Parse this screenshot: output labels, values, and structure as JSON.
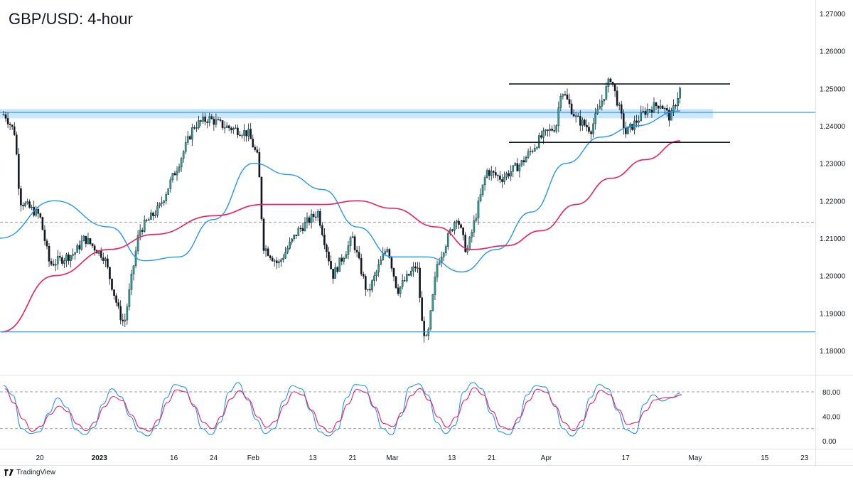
{
  "title": "GBP/USD: 4-hour",
  "brand": "TradingView",
  "colors": {
    "bull": "#26a69a",
    "bear": "#131722",
    "ma_short": "#2196f3",
    "ma_long": "#e91e63",
    "zone": "#90caf9",
    "support_line": "#2196f3",
    "range_lines": "#131722",
    "stoch_k": "#2196f3",
    "stoch_d": "#e91e63"
  },
  "chart_data": [
    {
      "type": "candlestick",
      "title": "GBP/USD: 4-hour",
      "ylim": [
        1.1755,
        1.2715
      ],
      "y_ticks": [
        "1.27000",
        "1.26000",
        "1.25000",
        "1.24000",
        "1.23000",
        "1.22000",
        "1.21000",
        "1.20000",
        "1.19000",
        "1.18000"
      ],
      "x_ticks": [
        "20",
        "2023",
        "16",
        "24",
        "Feb",
        "13",
        "21",
        "Mar",
        "13",
        "21",
        "Apr",
        "17",
        "May",
        "15",
        "23"
      ],
      "price_anchors": [
        {
          "date": "Dec 13",
          "close": 1.243
        },
        {
          "date": "Dec 15",
          "close": 1.238
        },
        {
          "date": "Dec 16",
          "close": 1.22
        },
        {
          "date": "Dec 20",
          "close": 1.216
        },
        {
          "date": "Dec 22",
          "close": 1.203
        },
        {
          "date": "Dec 27",
          "close": 1.206
        },
        {
          "date": "Dec 29",
          "close": 1.21
        },
        {
          "date": "Jan 02",
          "close": 1.205
        },
        {
          "date": "Jan 05",
          "close": 1.19
        },
        {
          "date": "Jan 06",
          "close": 1.187
        },
        {
          "date": "Jan 09",
          "close": 1.212
        },
        {
          "date": "Jan 13",
          "close": 1.218
        },
        {
          "date": "Jan 17",
          "close": 1.23
        },
        {
          "date": "Jan 20",
          "close": 1.24
        },
        {
          "date": "Jan 23",
          "close": 1.242
        },
        {
          "date": "Jan 26",
          "close": 1.24
        },
        {
          "date": "Jan 31",
          "close": 1.238
        },
        {
          "date": "Feb 02",
          "close": 1.231
        },
        {
          "date": "Feb 03",
          "close": 1.208
        },
        {
          "date": "Feb 06",
          "close": 1.203
        },
        {
          "date": "Feb 10",
          "close": 1.212
        },
        {
          "date": "Feb 14",
          "close": 1.217
        },
        {
          "date": "Feb 17",
          "close": 1.2
        },
        {
          "date": "Feb 21",
          "close": 1.21
        },
        {
          "date": "Feb 24",
          "close": 1.195
        },
        {
          "date": "Feb 28",
          "close": 1.208
        },
        {
          "date": "Mar 02",
          "close": 1.196
        },
        {
          "date": "Mar 06",
          "close": 1.203
        },
        {
          "date": "Mar 07",
          "close": 1.187
        },
        {
          "date": "Mar 08",
          "close": 1.182
        },
        {
          "date": "Mar 10",
          "close": 1.203
        },
        {
          "date": "Mar 14",
          "close": 1.216
        },
        {
          "date": "Mar 16",
          "close": 1.206
        },
        {
          "date": "Mar 20",
          "close": 1.228
        },
        {
          "date": "Mar 23",
          "close": 1.226
        },
        {
          "date": "Mar 27",
          "close": 1.23
        },
        {
          "date": "Mar 31",
          "close": 1.237
        },
        {
          "date": "Apr 03",
          "close": 1.24
        },
        {
          "date": "Apr 04",
          "close": 1.25
        },
        {
          "date": "Apr 07",
          "close": 1.242
        },
        {
          "date": "Apr 10",
          "close": 1.239
        },
        {
          "date": "Apr 14",
          "close": 1.253
        },
        {
          "date": "Apr 17",
          "close": 1.238
        },
        {
          "date": "Apr 21",
          "close": 1.244
        },
        {
          "date": "Apr 24",
          "close": 1.246
        },
        {
          "date": "Apr 26",
          "close": 1.242
        },
        {
          "date": "Apr 28",
          "close": 1.25
        }
      ],
      "ma_100": [
        {
          "date": "Dec 13",
          "value": 1.21
        },
        {
          "date": "Dec 23",
          "value": 1.22
        },
        {
          "date": "Jan 03",
          "value": 1.213
        },
        {
          "date": "Jan 10",
          "value": 1.204
        },
        {
          "date": "Jan 17",
          "value": 1.205
        },
        {
          "date": "Jan 24",
          "value": 1.215
        },
        {
          "date": "Feb 01",
          "value": 1.23
        },
        {
          "date": "Feb 08",
          "value": 1.227
        },
        {
          "date": "Feb 15",
          "value": 1.223
        },
        {
          "date": "Feb 22",
          "value": 1.213
        },
        {
          "date": "Mar 01",
          "value": 1.205
        },
        {
          "date": "Mar 08",
          "value": 1.205
        },
        {
          "date": "Mar 15",
          "value": 1.201
        },
        {
          "date": "Mar 22",
          "value": 1.207
        },
        {
          "date": "Mar 29",
          "value": 1.217
        },
        {
          "date": "Apr 05",
          "value": 1.23
        },
        {
          "date": "Apr 12",
          "value": 1.237
        },
        {
          "date": "Apr 19",
          "value": 1.24
        },
        {
          "date": "Apr 28",
          "value": 1.244
        }
      ],
      "ma_200": [
        {
          "date": "Dec 13",
          "value": 1.185
        },
        {
          "date": "Dec 23",
          "value": 1.2
        },
        {
          "date": "Jan 03",
          "value": 1.207
        },
        {
          "date": "Jan 12",
          "value": 1.211
        },
        {
          "date": "Jan 24",
          "value": 1.216
        },
        {
          "date": "Feb 03",
          "value": 1.219
        },
        {
          "date": "Feb 15",
          "value": 1.219
        },
        {
          "date": "Feb 22",
          "value": 1.22
        },
        {
          "date": "Mar 01",
          "value": 1.218
        },
        {
          "date": "Mar 10",
          "value": 1.213
        },
        {
          "date": "Mar 17",
          "value": 1.207
        },
        {
          "date": "Mar 24",
          "value": 1.208
        },
        {
          "date": "Mar 31",
          "value": 1.212
        },
        {
          "date": "Apr 07",
          "value": 1.219
        },
        {
          "date": "Apr 14",
          "value": 1.226
        },
        {
          "date": "Apr 21",
          "value": 1.231
        },
        {
          "date": "Apr 28",
          "value": 1.236
        }
      ],
      "annotations": {
        "resistance_zone": [
          1.242,
          1.2445
        ],
        "resistance_zone_line": 1.2436,
        "support_line": 1.185,
        "range_top": 1.2512,
        "range_bottom": 1.2356,
        "dashed_reference": 1.2143
      }
    },
    {
      "type": "line",
      "title": "",
      "ylim": [
        -5,
        100
      ],
      "y_ticks": [
        "80.00",
        "40.00",
        "0.00"
      ],
      "overbought": 80,
      "oversold": 20,
      "k_anchors": [
        90,
        75,
        20,
        12,
        15,
        45,
        70,
        55,
        18,
        10,
        22,
        60,
        85,
        72,
        40,
        15,
        8,
        25,
        70,
        92,
        88,
        60,
        20,
        10,
        30,
        80,
        95,
        70,
        35,
        12,
        20,
        65,
        90,
        85,
        50,
        15,
        8,
        18,
        70,
        92,
        90,
        55,
        20,
        10,
        40,
        88,
        93,
        75,
        30,
        12,
        25,
        80,
        95,
        85,
        45,
        15,
        10,
        30,
        75,
        90,
        88,
        60,
        20,
        8,
        22,
        70,
        92,
        85,
        50,
        18,
        12,
        60,
        75,
        65,
        70,
        78
      ]
    }
  ]
}
